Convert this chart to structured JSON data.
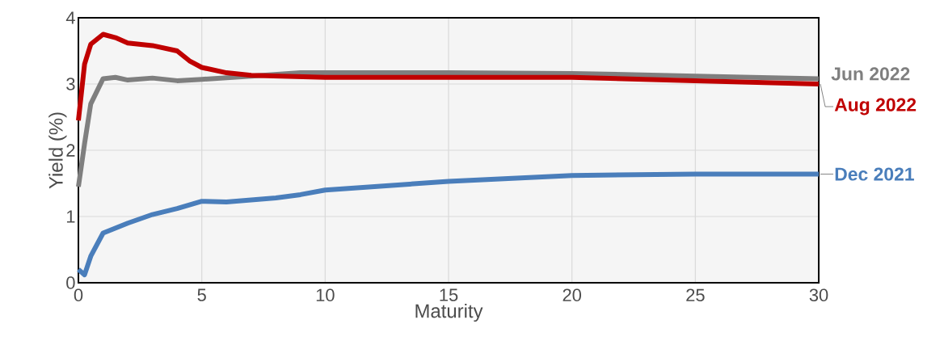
{
  "chart_data": {
    "type": "line",
    "xlabel": "Maturity",
    "ylabel": "Yield (%)",
    "xlim": [
      0,
      30
    ],
    "ylim": [
      0,
      4
    ],
    "xticks": [
      0,
      5,
      10,
      15,
      20,
      25,
      30
    ],
    "yticks": [
      0,
      1,
      2,
      3,
      4
    ],
    "grid": true,
    "marker": "none",
    "line_style": "solid",
    "series": [
      {
        "name": "Jun 2022",
        "color": "#7f7f7f",
        "x": [
          0,
          0.25,
          0.5,
          1,
          1.5,
          2,
          3,
          4,
          5,
          7,
          9,
          15,
          20,
          25,
          30
        ],
        "values": [
          1.45,
          2.1,
          2.7,
          3.08,
          3.1,
          3.06,
          3.09,
          3.05,
          3.07,
          3.12,
          3.17,
          3.17,
          3.16,
          3.12,
          3.08
        ]
      },
      {
        "name": "Aug 2022",
        "color": "#c00000",
        "x": [
          0,
          0.25,
          0.5,
          1,
          1.5,
          2,
          3,
          4,
          4.5,
          5,
          6,
          7,
          10,
          20,
          25,
          30
        ],
        "values": [
          2.45,
          3.3,
          3.6,
          3.75,
          3.7,
          3.62,
          3.58,
          3.5,
          3.35,
          3.25,
          3.17,
          3.13,
          3.1,
          3.1,
          3.05,
          3.0
        ]
      },
      {
        "name": "Dec 2021",
        "color": "#4a7ebb",
        "x": [
          0,
          0.25,
          0.5,
          1,
          2,
          3,
          4,
          5,
          6,
          8,
          9,
          10,
          15,
          20,
          25,
          30
        ],
        "values": [
          0.2,
          0.12,
          0.4,
          0.75,
          0.9,
          1.03,
          1.12,
          1.23,
          1.22,
          1.28,
          1.33,
          1.4,
          1.53,
          1.62,
          1.64,
          1.64
        ]
      }
    ]
  }
}
